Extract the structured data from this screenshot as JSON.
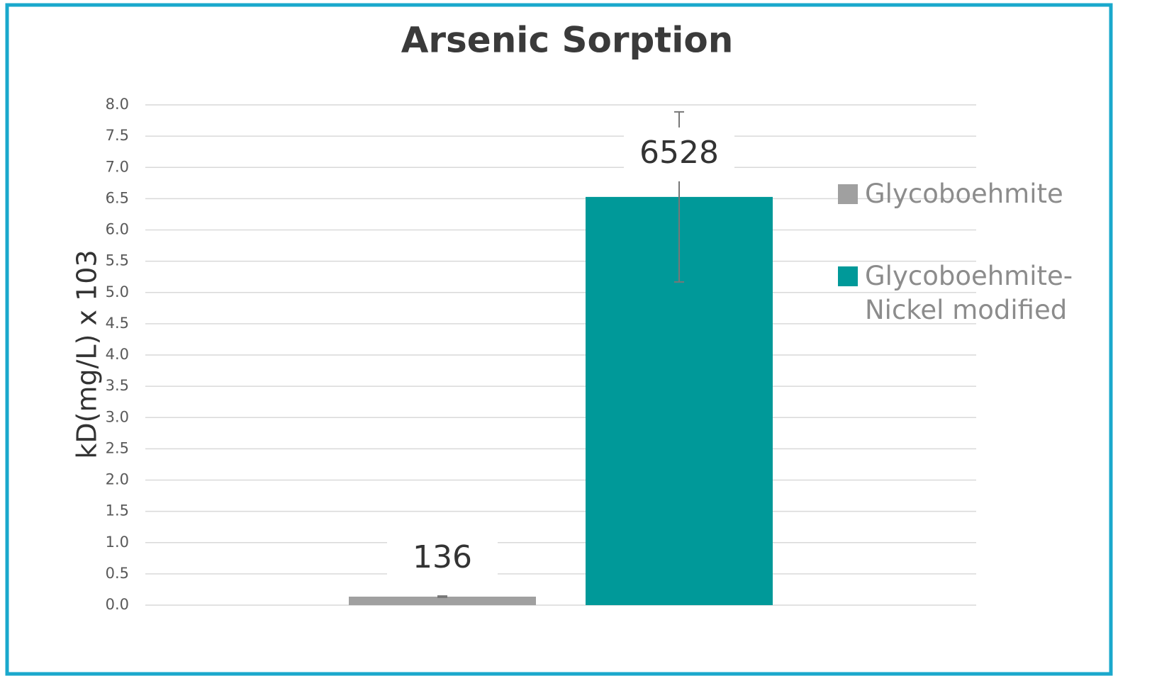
{
  "chart_data": {
    "type": "bar",
    "title": "Arsenic Sorption",
    "y_label": "kD(mg/L) x 103",
    "categories": [
      null
    ],
    "series": [
      {
        "name": "Glycoboehmite",
        "color": "#a0a0a0",
        "values": [
          0.136
        ],
        "value_labels": [
          "136"
        ],
        "errors": [
          0.01
        ]
      },
      {
        "name": "Glycoboehmite-Nickel modified",
        "color": "#009999",
        "values": [
          6.528
        ],
        "value_labels": [
          "6528"
        ],
        "errors": [
          1.36
        ]
      }
    ],
    "ylim": [
      0,
      8
    ],
    "yticks": [
      {
        "value": 0,
        "label": "0.0"
      },
      0.5,
      {
        "value": 1,
        "label": "1.0"
      },
      1.5,
      {
        "value": 2,
        "label": "2.0"
      },
      2.5,
      {
        "value": 3,
        "label": "3.0"
      },
      3.5,
      {
        "value": 4,
        "label": "4.0"
      },
      4.5,
      {
        "value": 5,
        "label": "5.0"
      },
      5.5,
      {
        "value": 6,
        "label": "6.0"
      },
      6.5,
      {
        "value": 7,
        "label": "7.0"
      },
      7.5,
      {
        "value": 8,
        "label": "8.0"
      }
    ],
    "grid": true,
    "legend": "right"
  }
}
